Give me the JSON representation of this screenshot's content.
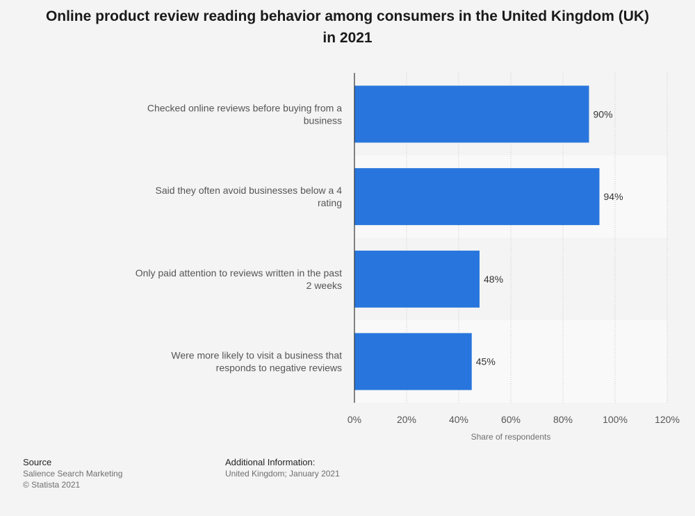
{
  "chart_data": {
    "type": "bar",
    "orientation": "horizontal",
    "title": "Online product review reading behavior among consumers in the United Kingdom (UK) in 2021",
    "categories": [
      [
        "Checked online reviews before buying from a",
        "business"
      ],
      [
        "Said they often avoid businesses below a 4",
        "rating"
      ],
      [
        "Only paid attention to reviews written in the past",
        "2 weeks"
      ],
      [
        "Were more likely to visit a business that",
        "responds to negative reviews"
      ]
    ],
    "values": [
      90,
      94,
      48,
      45
    ],
    "value_labels": [
      "90%",
      "94%",
      "48%",
      "45%"
    ],
    "xlabel": "Share of respondents",
    "xlim": [
      0,
      120
    ],
    "x_ticks": [
      0,
      20,
      40,
      60,
      80,
      100,
      120
    ],
    "x_tick_labels": [
      "0%",
      "20%",
      "40%",
      "60%",
      "80%",
      "100%",
      "120%"
    ],
    "grid": true,
    "bar_color": "#2876dd"
  },
  "footer": {
    "source_heading": "Source",
    "source_lines": [
      "Salience Search Marketing",
      "© Statista 2021"
    ],
    "info_heading": "Additional Information:",
    "info_line": "United Kingdom; January 2021"
  }
}
